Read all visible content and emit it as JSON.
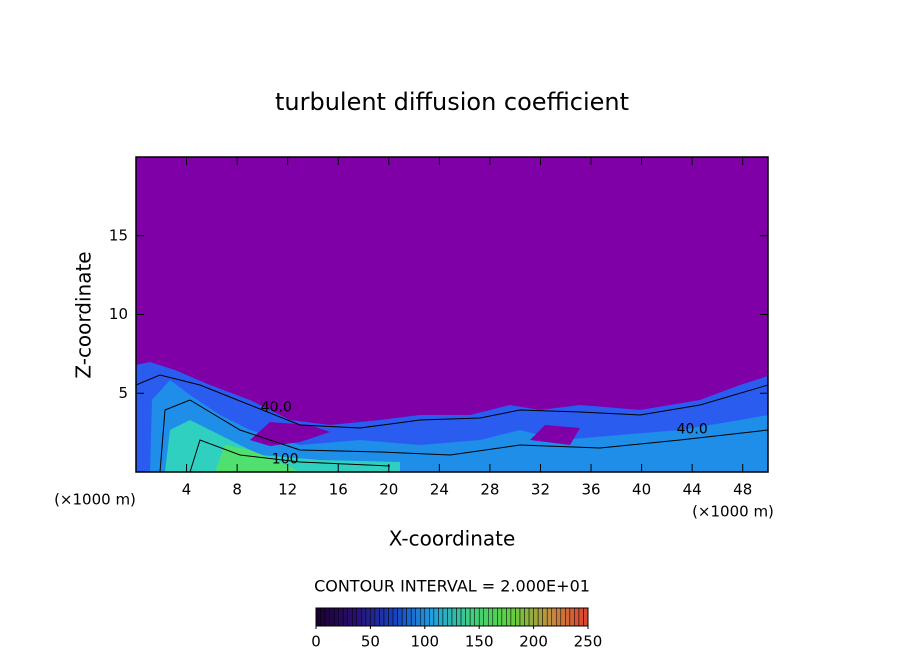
{
  "chart_data": {
    "type": "contour",
    "title": "turbulent diffusion coefficient",
    "xlabel": "X-coordinate",
    "ylabel": "Z-coordinate",
    "x_unit": "(×1000 m)",
    "xlim": [
      0,
      50
    ],
    "xticks": [
      4,
      8,
      12,
      16,
      20,
      24,
      28,
      32,
      36,
      40,
      44,
      48
    ],
    "ylim": [
      0,
      20
    ],
    "yticks": [
      5,
      10,
      15
    ],
    "contour_interval": "CONTOUR INTERVAL = 2.000E+01",
    "contour_labels": [
      {
        "value": 40,
        "label": "40.0",
        "x": 11.1,
        "z": 4.1
      },
      {
        "value": 40,
        "label": "40.0",
        "x": 44,
        "z": 2.7
      },
      {
        "value": 100,
        "label": "100",
        "x": 11.8,
        "z": 0.8
      }
    ],
    "colorbar": {
      "lim": [
        0,
        250
      ],
      "ticks": [
        0,
        50,
        100,
        150,
        200,
        250
      ],
      "colors": [
        "#1a0030",
        "#2a1070",
        "#1840c0",
        "#20a0e0",
        "#40d080",
        "#60d040",
        "#c09040",
        "#e04030"
      ]
    },
    "background_color": "#8000a8"
  }
}
